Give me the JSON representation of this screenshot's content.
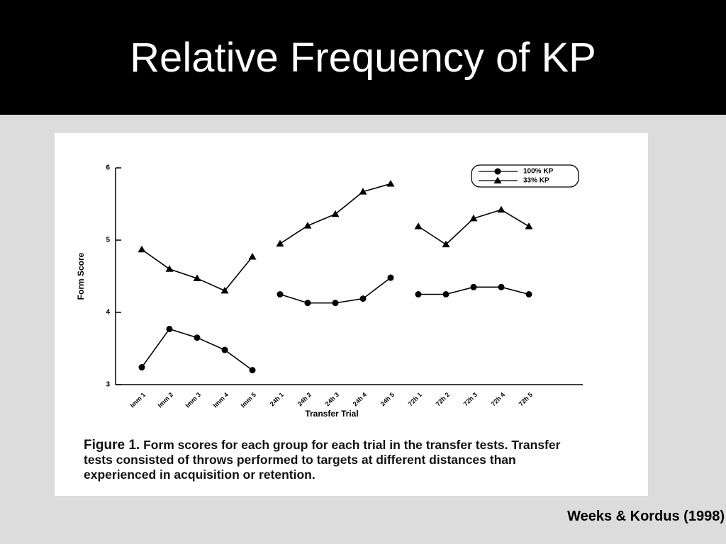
{
  "slide_title": "Relative Frequency of KP",
  "chart_data": {
    "type": "line",
    "x_label": "Transfer Trial",
    "y_label": "Form Score",
    "categories": [
      "Imm 1",
      "Imm 2",
      "Imm 3",
      "Imm 4",
      "Imm 5",
      "24h 1",
      "24h 2",
      "24h 3",
      "24h 4",
      "24h 5",
      "72h 1",
      "72h 2",
      "72h 3",
      "72h 4",
      "72h 5"
    ],
    "series": [
      {
        "name": "100% KP",
        "color": "#000000",
        "marker": "circle",
        "values": [
          3.24,
          3.77,
          3.65,
          3.48,
          3.2,
          4.25,
          4.13,
          4.13,
          4.19,
          4.48,
          4.25,
          4.25,
          4.35,
          4.35,
          4.25
        ]
      },
      {
        "name": "33% KP",
        "color": "#000000",
        "marker": "triangle",
        "values": [
          4.87,
          4.6,
          4.47,
          4.3,
          4.77,
          4.95,
          5.2,
          5.36,
          5.67,
          5.78,
          5.19,
          4.94,
          5.3,
          5.42,
          5.19
        ]
      }
    ],
    "ylim": [
      3,
      6
    ],
    "yticks": [
      3,
      4,
      5,
      6
    ],
    "legend": "top-right"
  },
  "caption": {
    "label": "Figure 1.",
    "text": "Form scores for each group for each trial in the transfer tests. Transfer tests consisted of throws performed to targets at different distances than experienced in acquisition or retention."
  },
  "source": "Weeks & Kordus (1998)"
}
